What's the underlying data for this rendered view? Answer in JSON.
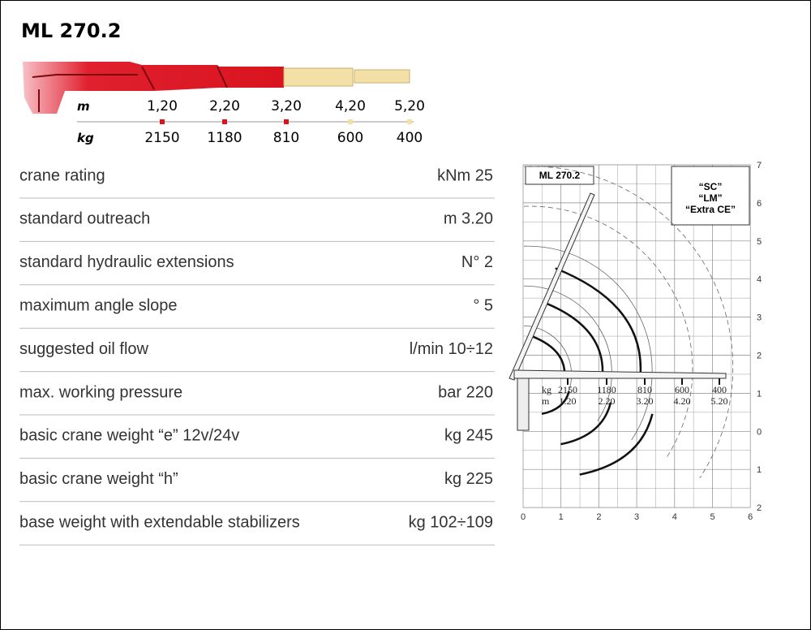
{
  "header": {
    "title": "ML 270.2"
  },
  "outreach": {
    "m_label": "m",
    "m_values": [
      "1,20",
      "2,20",
      "3,20",
      "4,20",
      "5,20"
    ],
    "kg_label": "kg",
    "kg_values": [
      "2150",
      "1180",
      "810",
      "600",
      "400"
    ]
  },
  "table": {
    "rows": [
      [
        "crane rating",
        "kNm 25"
      ],
      [
        "standard outreach",
        "m 3.20"
      ],
      [
        "standard hydraulic extensions",
        "N° 2"
      ],
      [
        "maximum angle slope",
        "° 5"
      ],
      [
        "suggested oil flow",
        "l/min 10÷12"
      ],
      [
        "max. working pressure",
        "bar 220"
      ],
      [
        "basic crane weight “e” 12v/24v",
        "kg 245"
      ],
      [
        "basic crane weight “h”",
        "kg 225"
      ],
      [
        "base weight with extendable stabilizers",
        "kg 102÷109"
      ]
    ]
  },
  "diagram": {
    "title": "ML 270.2",
    "notes": [
      "“SC”",
      "“LM”",
      "“Extra CE”"
    ],
    "x_labels": [
      "0",
      "1",
      "2",
      "3",
      "4",
      "5",
      "6"
    ],
    "y_labels": [
      "7",
      "6",
      "5",
      "4",
      "3",
      "2",
      "1",
      "0",
      "1",
      "2"
    ],
    "kg_label": "kg",
    "m_label": "m",
    "kg_values": [
      "2150",
      "1180",
      "810",
      "600",
      "400"
    ],
    "m_values": [
      "1.20",
      "2.20",
      "3.20",
      "4.20",
      "5.20"
    ]
  }
}
